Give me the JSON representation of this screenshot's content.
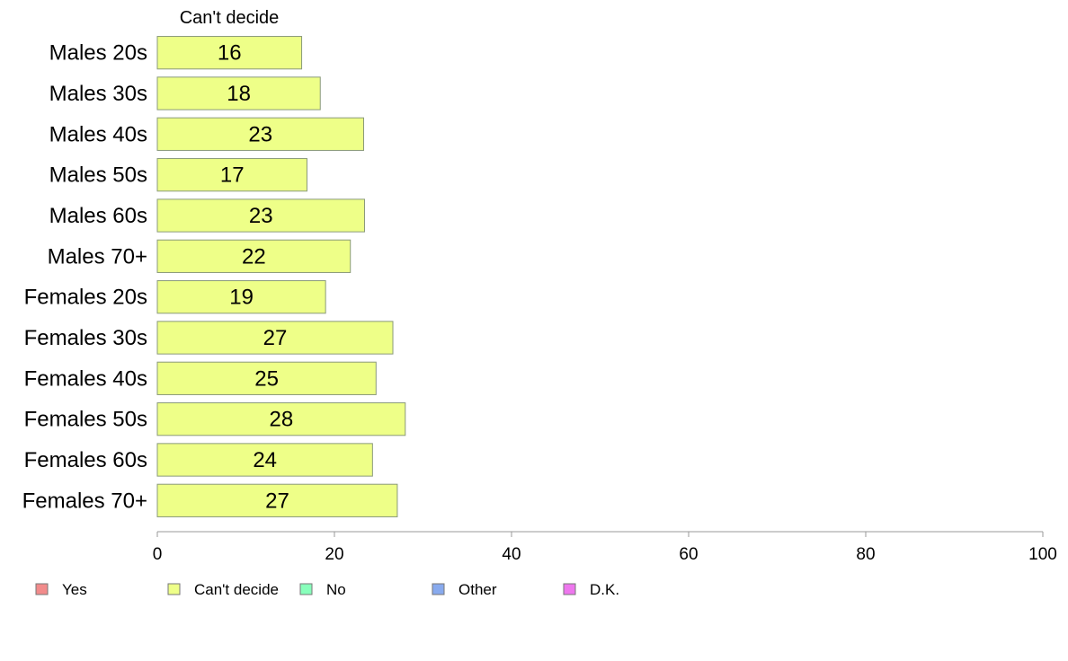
{
  "chart_data": {
    "type": "bar",
    "orientation": "horizontal",
    "stacked": true,
    "categories": [
      "Males 20s",
      "Males 30s",
      "Males 40s",
      "Males 50s",
      "Males 60s",
      "Males 70+",
      "Females 20s",
      "Females 30s",
      "Females 40s",
      "Females 50s",
      "Females 60s",
      "Females 70+"
    ],
    "series": [
      {
        "name": "Yes",
        "color": "#f28b8b",
        "values": [
          0,
          0,
          0,
          0,
          0,
          0,
          0,
          0,
          0,
          0,
          0,
          0
        ]
      },
      {
        "name": "Can't decide",
        "color": "#eeff88",
        "values": [
          16.3,
          18.4,
          23.3,
          16.9,
          23.4,
          21.8,
          19.0,
          26.6,
          24.7,
          28.0,
          24.3,
          27.1
        ]
      },
      {
        "name": "No",
        "color": "#88ffbb",
        "values": [
          0,
          0,
          0,
          0,
          0,
          0,
          0,
          0,
          0,
          0,
          0,
          0
        ]
      },
      {
        "name": "Other",
        "color": "#88aaee",
        "values": [
          0,
          0,
          0,
          0,
          0,
          0,
          0,
          0,
          0,
          0,
          0,
          0
        ]
      },
      {
        "name": "D.K.",
        "color": "#ee77ee",
        "values": [
          0,
          0,
          0,
          0,
          0,
          0,
          0,
          0,
          0,
          0,
          0,
          0
        ]
      }
    ],
    "data_labels": [
      "16",
      "18",
      "23",
      "17",
      "23",
      "22",
      "19",
      "27",
      "25",
      "28",
      "24",
      "27"
    ],
    "series_header": "Can't decide",
    "xlim": [
      0,
      100
    ],
    "xticks": [
      "0",
      "20",
      "40",
      "60",
      "80",
      "100"
    ],
    "grid": false,
    "legend_position": "bottom"
  }
}
